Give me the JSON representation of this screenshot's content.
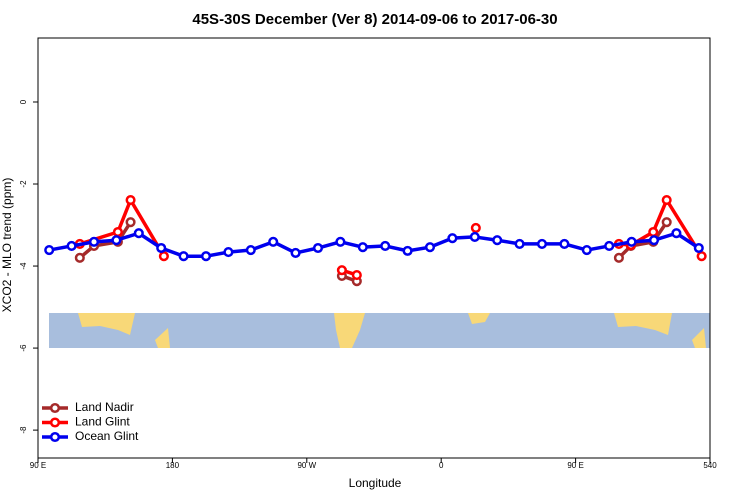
{
  "chart_data": {
    "type": "line",
    "title": "45S-30S December (Ver 8)   2014-09-06 to 2017-06-30",
    "x_label": "Longitude",
    "y_label": "XCO2 - MLO trend (ppm)",
    "xlim": [
      90,
      540
    ],
    "xticks": [
      {
        "value": 90,
        "label": "90 E"
      },
      180,
      {
        "value": 270,
        "label": "90 W"
      },
      {
        "value": 360,
        "label": "0"
      },
      {
        "value": 450,
        "label": "90 E"
      },
      540
    ],
    "ylim": [
      -8.68,
      1.56
    ],
    "yticks": [
      0,
      -2,
      -4,
      -6,
      -8
    ],
    "legend": "bottom-left",
    "series": [
      {
        "name": "Land Nadir",
        "color": "#a52a2a",
        "x": [
          118,
          127.5,
          143.5,
          152,
          null,
          293.5,
          303.5,
          null,
          479,
          487,
          502,
          511
        ],
        "values": [
          -3.8,
          -3.51,
          -3.41,
          -2.93,
          null,
          -4.24,
          -4.37,
          null,
          -3.8,
          -3.51,
          -3.41,
          -2.93
        ]
      },
      {
        "name": "Land Glint",
        "color": "#ff0000",
        "x": [
          118,
          143.5,
          152,
          174.3,
          null,
          293.5,
          303.5,
          null,
          383.2,
          null,
          479,
          487,
          502,
          511,
          534.4
        ],
        "values": [
          -3.46,
          -3.17,
          -2.39,
          -3.76,
          null,
          -4.1,
          -4.22,
          null,
          -3.07,
          null,
          -3.46,
          -3.49,
          -3.17,
          -2.39,
          -3.76
        ]
      },
      {
        "name": "Ocean Glint",
        "color": "#0000ee",
        "x": [
          97.5,
          112.5,
          127.5,
          142.5,
          157.5,
          172.5,
          187.5,
          202.5,
          217.5,
          232.5,
          247.5,
          262.5,
          277.5,
          292.5,
          307.5,
          322.5,
          337.5,
          352.5,
          367.5,
          382.5,
          397.5,
          412.5,
          427.5,
          442.5,
          457.5,
          472.5,
          487.5,
          502.5,
          517.5,
          532.5
        ],
        "values": [
          -3.61,
          -3.51,
          -3.41,
          -3.37,
          -3.2,
          -3.56,
          -3.76,
          -3.76,
          -3.66,
          -3.61,
          -3.41,
          -3.68,
          -3.56,
          -3.41,
          -3.54,
          -3.51,
          -3.63,
          -3.54,
          -3.32,
          -3.29,
          -3.37,
          -3.46,
          -3.46,
          -3.46,
          -3.61,
          -3.51,
          -3.41,
          -3.37,
          -3.2,
          -3.56
        ]
      }
    ]
  }
}
